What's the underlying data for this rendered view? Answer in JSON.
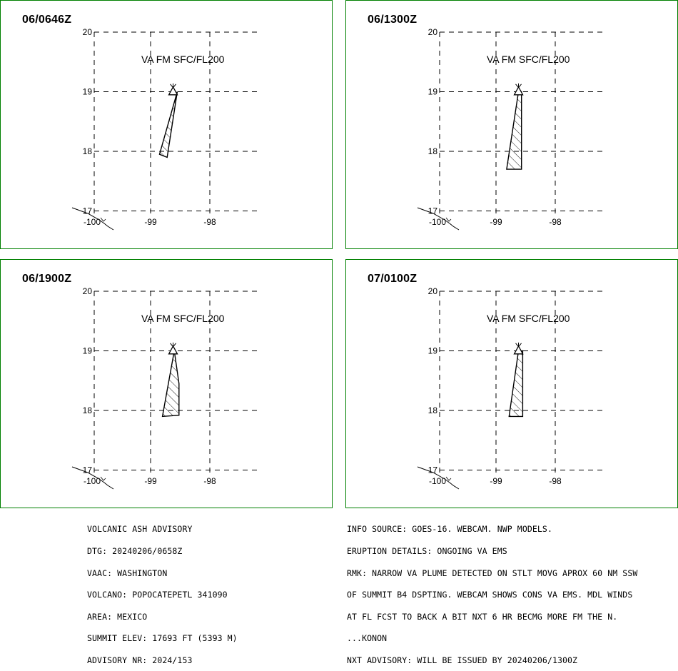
{
  "panels": [
    {
      "id": "p1",
      "title": "06/0646Z",
      "level_label": "VA FM SFC/FL200",
      "plume": [
        [
          -98.55,
          19.0
        ],
        [
          -98.85,
          17.95
        ],
        [
          -98.72,
          17.9
        ]
      ]
    },
    {
      "id": "p2",
      "title": "06/1300Z",
      "level_label": "VA FM SFC/FL200",
      "plume": [
        [
          -98.62,
          19.0
        ],
        [
          -98.57,
          19.0
        ],
        [
          -98.57,
          17.7
        ],
        [
          -98.82,
          17.7
        ]
      ]
    },
    {
      "id": "p3",
      "title": "06/1900Z",
      "level_label": "VA FM SFC/FL200",
      "plume": [
        [
          -98.6,
          19.0
        ],
        [
          -98.52,
          18.45
        ],
        [
          -98.52,
          17.92
        ],
        [
          -98.8,
          17.9
        ]
      ]
    },
    {
      "id": "p4",
      "title": "07/0100Z",
      "level_label": "VA FM SFC/FL200",
      "plume": [
        [
          -98.62,
          19.0
        ],
        [
          -98.55,
          19.0
        ],
        [
          -98.55,
          17.9
        ],
        [
          -98.78,
          17.9
        ]
      ]
    }
  ],
  "map": {
    "lat_ticks": [
      "20",
      "19",
      "18",
      "17"
    ],
    "lat_values": [
      20,
      19,
      18,
      17
    ],
    "lon_ticks": [
      "-100",
      "-99",
      "-98"
    ],
    "lon_values": [
      -100,
      -99,
      -98
    ],
    "volcano": {
      "lon": -98.62,
      "lat": 19.02,
      "symbol": "triangle"
    },
    "line_color": "#000000",
    "border_color": "#008000"
  },
  "advisory_left": [
    "VOLCANIC ASH ADVISORY",
    "DTG: 20240206/0658Z",
    "VAAC: WASHINGTON",
    "VOLCANO: POPOCATEPETL 341090",
    "AREA: MEXICO",
    "SUMMIT ELEV: 17693 FT (5393 M)",
    "ADVISORY NR: 2024/153"
  ],
  "advisory_right": [
    "INFO SOURCE: GOES-16. WEBCAM. NWP MODELS.",
    "ERUPTION DETAILS: ONGOING VA EMS",
    "RMK: NARROW VA PLUME DETECTED ON STLT MOVG APROX 60 NM SSW",
    "OF SUMMIT B4 DSPTING. WEBCAM SHOWS CONS VA EMS. MDL WINDS",
    "AT FL FCST TO BACK A BIT NXT 6 HR BECMG MORE FM THE N.",
    "...KONON",
    "NXT ADVISORY: WILL BE ISSUED BY 20240206/1300Z"
  ]
}
